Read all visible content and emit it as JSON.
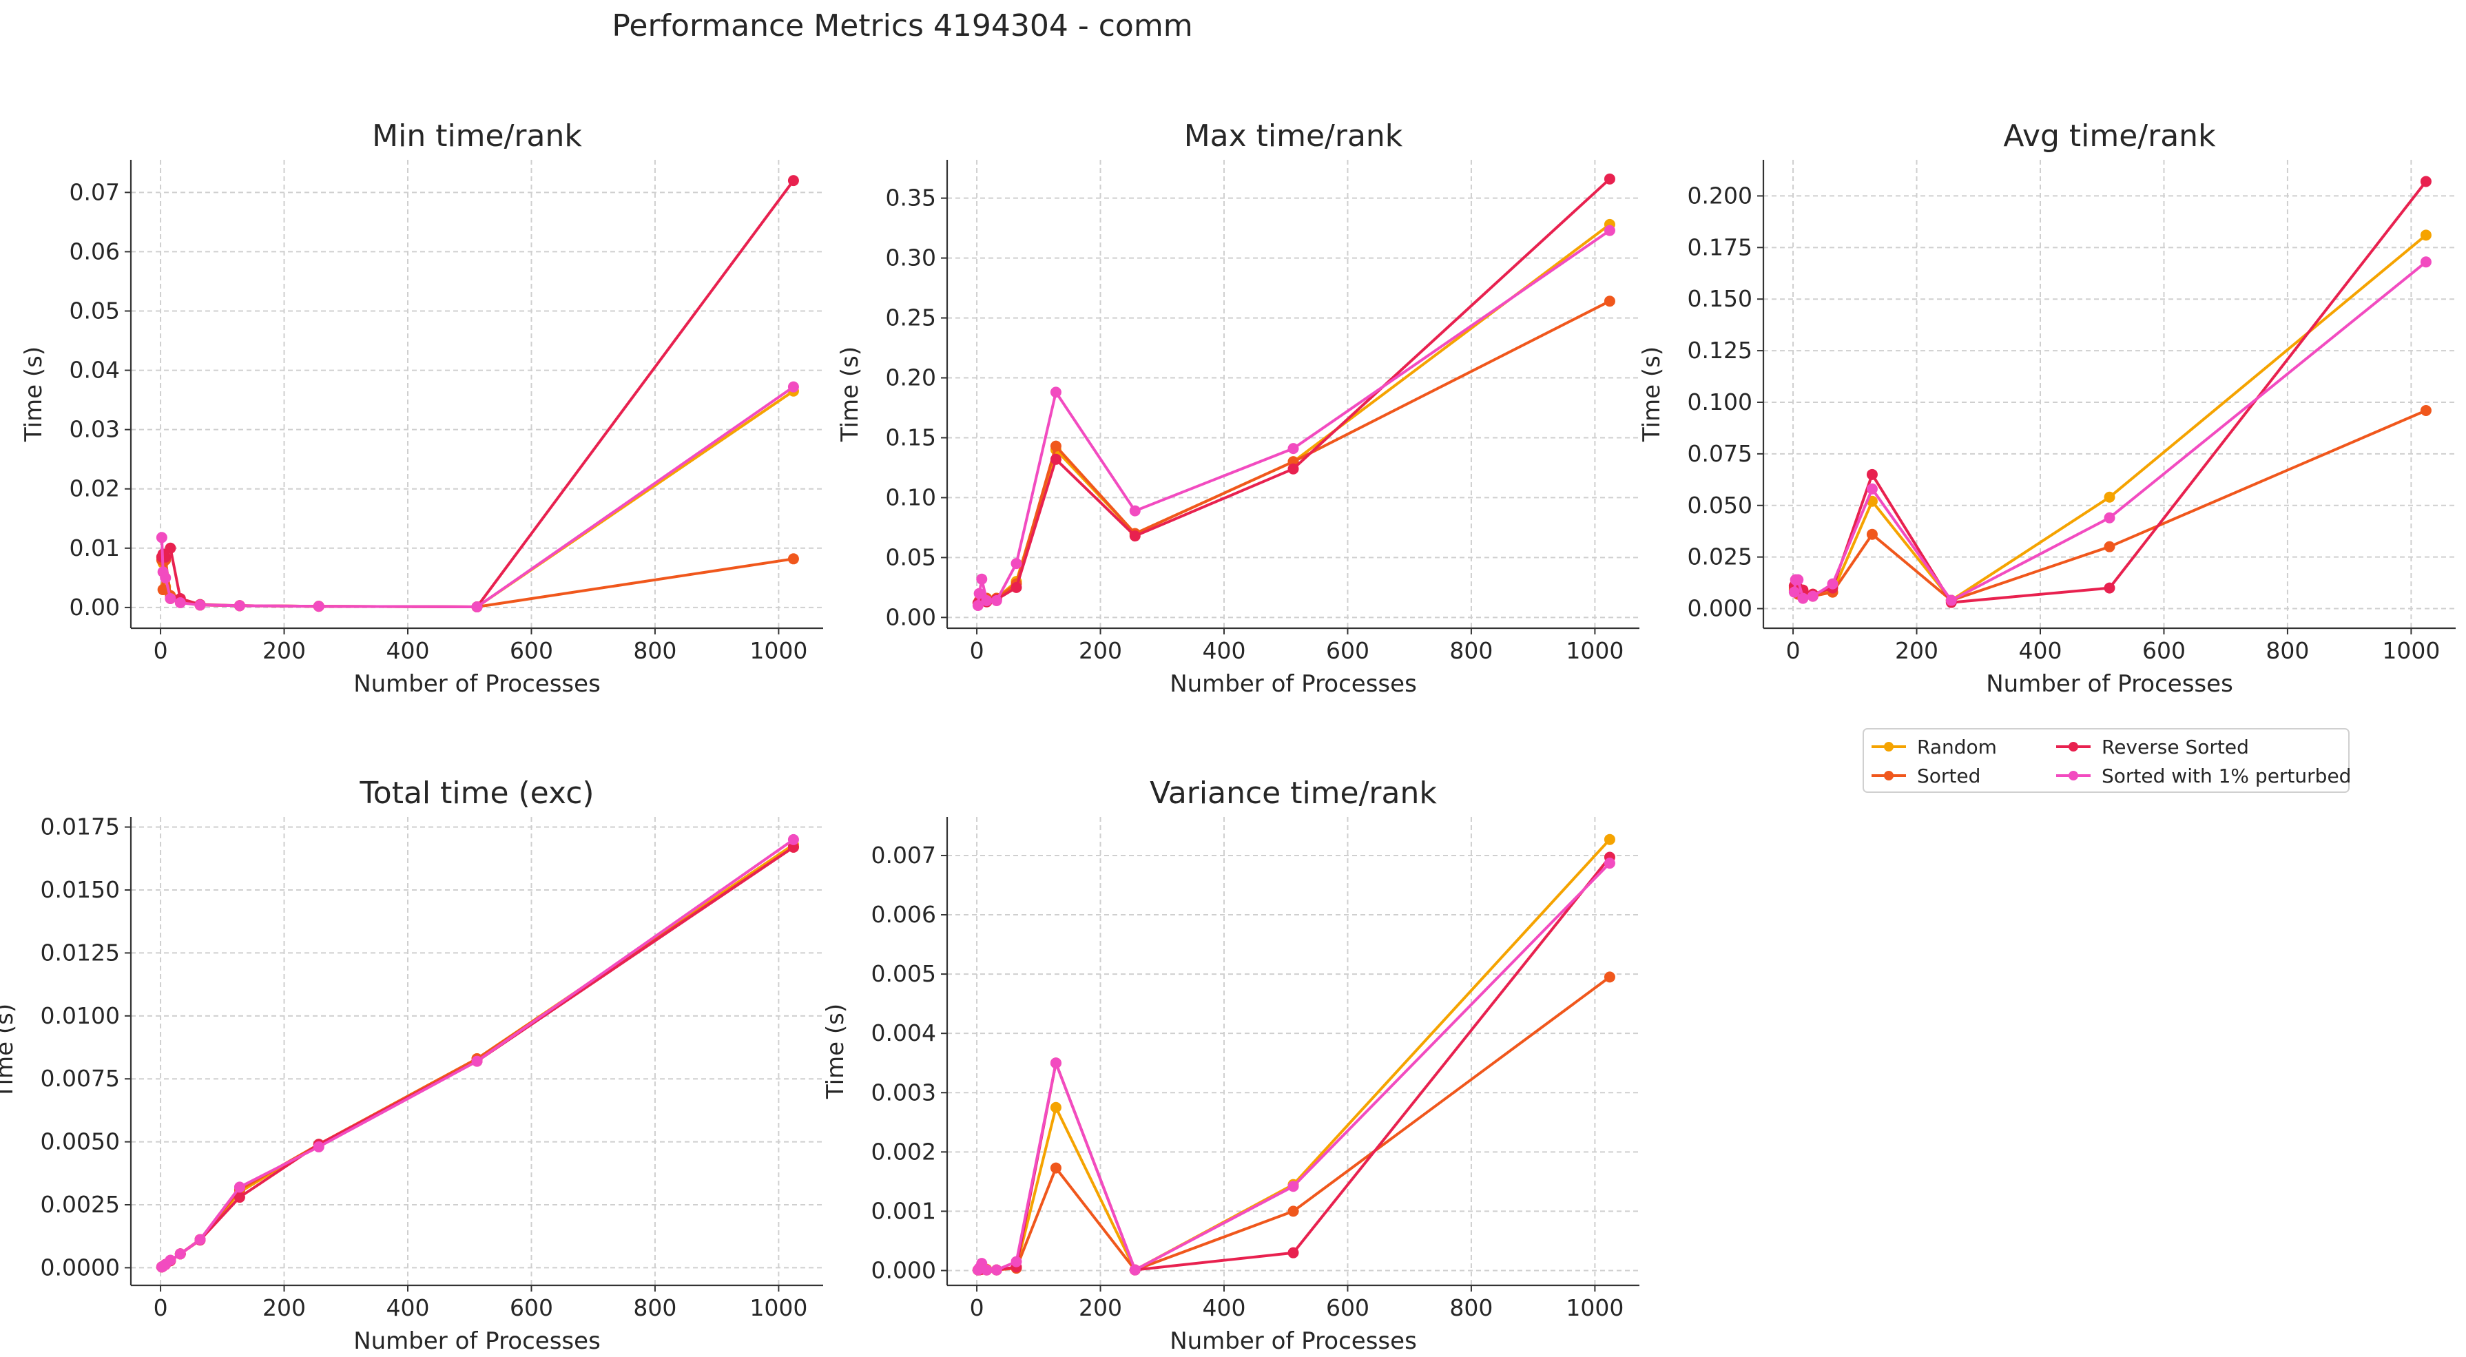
{
  "figure": {
    "suptitle": "Performance Metrics 4194304 - comm"
  },
  "series_styles": [
    {
      "name": "Random",
      "color": "#F5A300"
    },
    {
      "name": "Sorted",
      "color": "#F0571C"
    },
    {
      "name": "Reverse Sorted",
      "color": "#E8214F"
    },
    {
      "name": "Sorted with 1% perturbed",
      "color": "#F24BC0"
    }
  ],
  "chart_data": [
    {
      "type": "line",
      "title": "Min time/rank",
      "xlabel": "Number of Processes",
      "ylabel": "Time (s)",
      "xlim": [
        -48,
        1072
      ],
      "ylim": [
        -0.0035,
        0.0755
      ],
      "xticks": [
        0,
        200,
        400,
        600,
        800,
        1000
      ],
      "xtick_labels": [
        "0",
        "200",
        "400",
        "600",
        "800",
        "1000"
      ],
      "yticks": [
        0,
        0.01,
        0.02,
        0.03,
        0.04,
        0.05,
        0.06,
        0.07
      ],
      "ytick_labels": [
        "0.00",
        "0.01",
        "0.02",
        "0.03",
        "0.04",
        "0.05",
        "0.06",
        "0.07"
      ],
      "grid": true,
      "x": [
        2,
        4,
        8,
        16,
        32,
        64,
        128,
        256,
        512,
        1024
      ],
      "series": [
        {
          "name": "Random",
          "values": [
            0.0085,
            0.0075,
            0.0035,
            0.0015,
            0.001,
            0.0004,
            0.0003,
            0.0002,
            0.0001,
            0.0365
          ]
        },
        {
          "name": "Sorted",
          "values": [
            0.008,
            0.003,
            0.008,
            0.002,
            0.0012,
            0.0004,
            0.0003,
            0.0002,
            0.0001,
            0.0082
          ]
        },
        {
          "name": "Reverse Sorted",
          "values": [
            0.0085,
            0.009,
            0.0085,
            0.01,
            0.0015,
            0.0005,
            0.0003,
            0.0002,
            0.0001,
            0.072
          ]
        },
        {
          "name": "Sorted with 1% perturbed",
          "values": [
            0.0118,
            0.006,
            0.005,
            0.0015,
            0.0008,
            0.0004,
            0.0003,
            0.0002,
            0.0001,
            0.0372
          ]
        }
      ]
    },
    {
      "type": "line",
      "title": "Max time/rank",
      "xlabel": "Number of Processes",
      "ylabel": "Time (s)",
      "xlim": [
        -48,
        1072
      ],
      "ylim": [
        -0.009,
        0.382
      ],
      "xticks": [
        0,
        200,
        400,
        600,
        800,
        1000
      ],
      "xtick_labels": [
        "0",
        "200",
        "400",
        "600",
        "800",
        "1000"
      ],
      "yticks": [
        0,
        0.05,
        0.1,
        0.15,
        0.2,
        0.25,
        0.3,
        0.35
      ],
      "ytick_labels": [
        "0.00",
        "0.05",
        "0.10",
        "0.15",
        "0.20",
        "0.25",
        "0.30",
        "0.35"
      ],
      "grid": true,
      "x": [
        2,
        4,
        8,
        16,
        32,
        64,
        128,
        256,
        512,
        1024
      ],
      "series": [
        {
          "name": "Random",
          "values": [
            0.012,
            0.013,
            0.015,
            0.014,
            0.016,
            0.03,
            0.14,
            0.07,
            0.13,
            0.328
          ]
        },
        {
          "name": "Sorted",
          "values": [
            0.012,
            0.014,
            0.018,
            0.016,
            0.016,
            0.028,
            0.143,
            0.07,
            0.13,
            0.264
          ]
        },
        {
          "name": "Reverse Sorted",
          "values": [
            0.012,
            0.013,
            0.014,
            0.013,
            0.015,
            0.025,
            0.132,
            0.068,
            0.124,
            0.366
          ]
        },
        {
          "name": "Sorted with 1% perturbed",
          "values": [
            0.01,
            0.02,
            0.032,
            0.014,
            0.014,
            0.045,
            0.188,
            0.089,
            0.141,
            0.323
          ]
        }
      ]
    },
    {
      "type": "line",
      "title": "Avg time/rank",
      "xlabel": "Number of Processes",
      "ylabel": "Time (s)",
      "xlim": [
        -48,
        1072
      ],
      "ylim": [
        -0.0095,
        0.2175
      ],
      "xticks": [
        0,
        200,
        400,
        600,
        800,
        1000
      ],
      "xtick_labels": [
        "0",
        "200",
        "400",
        "600",
        "800",
        "1000"
      ],
      "yticks": [
        0,
        0.025,
        0.05,
        0.075,
        0.1,
        0.125,
        0.15,
        0.175,
        0.2
      ],
      "ytick_labels": [
        "0.000",
        "0.025",
        "0.050",
        "0.075",
        "0.100",
        "0.125",
        "0.150",
        "0.175",
        "0.200"
      ],
      "grid": true,
      "x": [
        2,
        4,
        8,
        16,
        32,
        64,
        128,
        256,
        512,
        1024
      ],
      "series": [
        {
          "name": "Random",
          "values": [
            0.01,
            0.009,
            0.008,
            0.007,
            0.007,
            0.008,
            0.052,
            0.004,
            0.054,
            0.181
          ]
        },
        {
          "name": "Sorted",
          "values": [
            0.009,
            0.008,
            0.007,
            0.006,
            0.006,
            0.008,
            0.036,
            0.004,
            0.03,
            0.096
          ]
        },
        {
          "name": "Reverse Sorted",
          "values": [
            0.011,
            0.012,
            0.01,
            0.009,
            0.007,
            0.01,
            0.065,
            0.003,
            0.01,
            0.207
          ]
        },
        {
          "name": "Sorted with 1% perturbed",
          "values": [
            0.008,
            0.014,
            0.014,
            0.005,
            0.006,
            0.012,
            0.058,
            0.004,
            0.044,
            0.168
          ]
        }
      ]
    },
    {
      "type": "line",
      "title": "Total time (exc)",
      "xlabel": "Number of Processes",
      "ylabel": "Time (s)",
      "xlim": [
        -48,
        1072
      ],
      "ylim": [
        -0.0007,
        0.0179
      ],
      "xticks": [
        0,
        200,
        400,
        600,
        800,
        1000
      ],
      "xtick_labels": [
        "0",
        "200",
        "400",
        "600",
        "800",
        "1000"
      ],
      "yticks": [
        0,
        0.0025,
        0.005,
        0.0075,
        0.01,
        0.0125,
        0.015,
        0.0175
      ],
      "ytick_labels": [
        "0.0000",
        "0.0025",
        "0.0050",
        "0.0075",
        "0.0100",
        "0.0125",
        "0.0150",
        "0.0175"
      ],
      "grid": true,
      "x": [
        2,
        4,
        8,
        16,
        32,
        64,
        128,
        256,
        512,
        1024
      ],
      "series": [
        {
          "name": "Random",
          "values": [
            3e-05,
            6e-05,
            0.00013,
            0.00028,
            0.00055,
            0.00112,
            0.003,
            0.0049,
            0.0083,
            0.0168
          ]
        },
        {
          "name": "Sorted",
          "values": [
            3e-05,
            6e-05,
            0.00013,
            0.00028,
            0.00055,
            0.00112,
            0.0031,
            0.0049,
            0.0083,
            0.0167
          ]
        },
        {
          "name": "Reverse Sorted",
          "values": [
            3e-05,
            6e-05,
            0.00013,
            0.00028,
            0.00055,
            0.0011,
            0.0028,
            0.0049,
            0.0082,
            0.0167
          ]
        },
        {
          "name": "Sorted with 1% perturbed",
          "values": [
            3e-05,
            6e-05,
            0.00013,
            0.0003,
            0.00055,
            0.00112,
            0.0032,
            0.0048,
            0.0082,
            0.017
          ]
        }
      ]
    },
    {
      "type": "line",
      "title": "Variance time/rank",
      "xlabel": "Number of Processes",
      "ylabel": "Time (s)",
      "xlim": [
        -48,
        1072
      ],
      "ylim": [
        -0.00025,
        0.00765
      ],
      "xticks": [
        0,
        200,
        400,
        600,
        800,
        1000
      ],
      "xtick_labels": [
        "0",
        "200",
        "400",
        "600",
        "800",
        "1000"
      ],
      "yticks": [
        0,
        0.001,
        0.002,
        0.003,
        0.004,
        0.005,
        0.006,
        0.007
      ],
      "ytick_labels": [
        "0.000",
        "0.001",
        "0.002",
        "0.003",
        "0.004",
        "0.005",
        "0.006",
        "0.007"
      ],
      "grid": true,
      "x": [
        2,
        4,
        8,
        16,
        32,
        64,
        128,
        256,
        512,
        1024
      ],
      "series": [
        {
          "name": "Random",
          "values": [
            1e-05,
            2e-05,
            3e-05,
            2e-05,
            1e-05,
            5e-05,
            0.00275,
            1e-05,
            0.00145,
            0.00727
          ]
        },
        {
          "name": "Sorted",
          "values": [
            1e-05,
            2e-05,
            2e-05,
            1e-05,
            1e-05,
            4e-05,
            0.00173,
            1e-05,
            0.001,
            0.00495
          ]
        },
        {
          "name": "Reverse Sorted",
          "values": [
            1e-05,
            1e-05,
            2e-05,
            1e-05,
            1e-05,
            6e-05,
            0.0035,
            1e-05,
            0.0003,
            0.00697
          ]
        },
        {
          "name": "Sorted with 1% perturbed",
          "values": [
            1e-05,
            4e-05,
            0.00012,
            1e-05,
            1e-05,
            0.00015,
            0.0035,
            1e-05,
            0.00142,
            0.00687
          ]
        }
      ]
    }
  ],
  "legend": {
    "placement": "below-right panel",
    "entries": [
      "Random",
      "Sorted",
      "Reverse Sorted",
      "Sorted with 1% perturbed"
    ]
  }
}
